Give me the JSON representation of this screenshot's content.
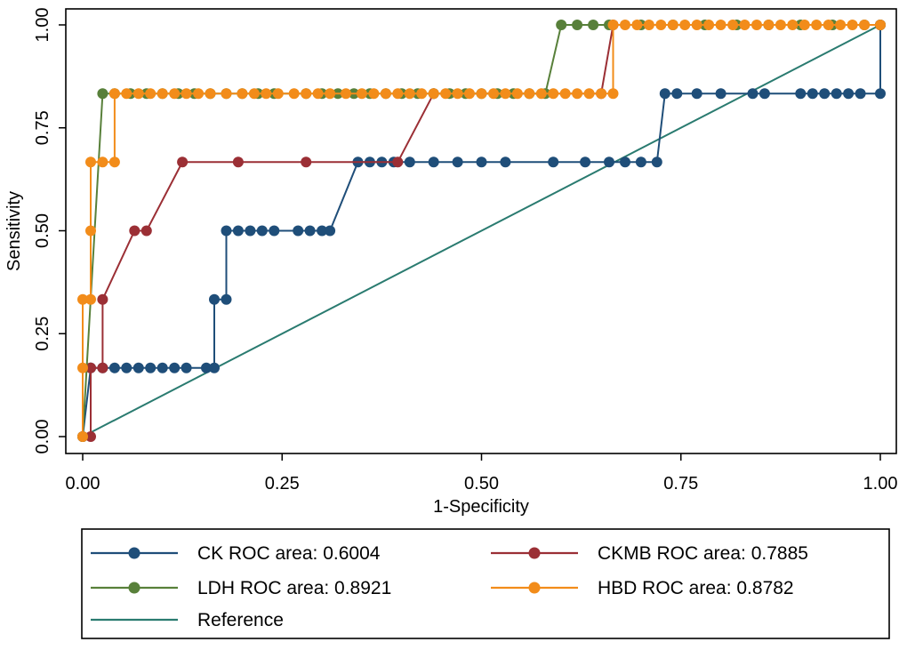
{
  "chart_data": {
    "type": "line",
    "title": "",
    "xlabel": "1-Specificity",
    "ylabel": "Sensitivity",
    "xlim": [
      0,
      1
    ],
    "ylim": [
      0,
      1
    ],
    "x_ticks": [
      "0.00",
      "0.25",
      "0.50",
      "0.75",
      "1.00"
    ],
    "y_ticks": [
      "0.00",
      "0.25",
      "0.50",
      "0.75",
      "1.00"
    ],
    "grid": false,
    "legend_position": "bottom",
    "series": [
      {
        "name": "CK",
        "label": "CK ROC area: 0.6004",
        "color": "#1f4e79",
        "marker": true,
        "points": [
          [
            0.0,
            0.0
          ],
          [
            0.01,
            0.1667
          ],
          [
            0.025,
            0.1667
          ],
          [
            0.04,
            0.1667
          ],
          [
            0.055,
            0.1667
          ],
          [
            0.07,
            0.1667
          ],
          [
            0.085,
            0.1667
          ],
          [
            0.1,
            0.1667
          ],
          [
            0.115,
            0.1667
          ],
          [
            0.13,
            0.1667
          ],
          [
            0.155,
            0.1667
          ],
          [
            0.165,
            0.1667
          ],
          [
            0.165,
            0.3333
          ],
          [
            0.18,
            0.3333
          ],
          [
            0.18,
            0.5
          ],
          [
            0.195,
            0.5
          ],
          [
            0.21,
            0.5
          ],
          [
            0.225,
            0.5
          ],
          [
            0.24,
            0.5
          ],
          [
            0.27,
            0.5
          ],
          [
            0.285,
            0.5
          ],
          [
            0.3,
            0.5
          ],
          [
            0.31,
            0.5
          ],
          [
            0.345,
            0.6667
          ],
          [
            0.36,
            0.6667
          ],
          [
            0.375,
            0.6667
          ],
          [
            0.39,
            0.6667
          ],
          [
            0.41,
            0.6667
          ],
          [
            0.44,
            0.6667
          ],
          [
            0.47,
            0.6667
          ],
          [
            0.5,
            0.6667
          ],
          [
            0.53,
            0.6667
          ],
          [
            0.59,
            0.6667
          ],
          [
            0.63,
            0.6667
          ],
          [
            0.66,
            0.6667
          ],
          [
            0.68,
            0.6667
          ],
          [
            0.7,
            0.6667
          ],
          [
            0.72,
            0.6667
          ],
          [
            0.73,
            0.8333
          ],
          [
            0.745,
            0.8333
          ],
          [
            0.77,
            0.8333
          ],
          [
            0.8,
            0.8333
          ],
          [
            0.84,
            0.8333
          ],
          [
            0.855,
            0.8333
          ],
          [
            0.9,
            0.8333
          ],
          [
            0.915,
            0.8333
          ],
          [
            0.93,
            0.8333
          ],
          [
            0.945,
            0.8333
          ],
          [
            0.96,
            0.8333
          ],
          [
            0.975,
            0.8333
          ],
          [
            1.0,
            0.8333
          ],
          [
            1.0,
            1.0
          ]
        ]
      },
      {
        "name": "CKMB",
        "label": "CKMB ROC area: 0.7885",
        "color": "#9b2f35",
        "marker": true,
        "points": [
          [
            0.0,
            0.0
          ],
          [
            0.01,
            0.0
          ],
          [
            0.01,
            0.1667
          ],
          [
            0.025,
            0.1667
          ],
          [
            0.025,
            0.3333
          ],
          [
            0.065,
            0.5
          ],
          [
            0.08,
            0.5
          ],
          [
            0.125,
            0.6667
          ],
          [
            0.195,
            0.6667
          ],
          [
            0.28,
            0.6667
          ],
          [
            0.395,
            0.6667
          ],
          [
            0.44,
            0.8333
          ],
          [
            0.65,
            0.8333
          ],
          [
            0.665,
            1.0
          ],
          [
            1.0,
            1.0
          ]
        ]
      },
      {
        "name": "LDH",
        "label": "LDH ROC area: 0.8921",
        "color": "#58803a",
        "marker": true,
        "points": [
          [
            0.0,
            0.0
          ],
          [
            0.025,
            0.8333
          ],
          [
            0.04,
            0.8333
          ],
          [
            0.06,
            0.8333
          ],
          [
            0.08,
            0.8333
          ],
          [
            0.1,
            0.8333
          ],
          [
            0.12,
            0.8333
          ],
          [
            0.14,
            0.8333
          ],
          [
            0.16,
            0.8333
          ],
          [
            0.18,
            0.8333
          ],
          [
            0.2,
            0.8333
          ],
          [
            0.22,
            0.8333
          ],
          [
            0.24,
            0.8333
          ],
          [
            0.28,
            0.8333
          ],
          [
            0.3,
            0.8333
          ],
          [
            0.32,
            0.8333
          ],
          [
            0.34,
            0.8333
          ],
          [
            0.36,
            0.8333
          ],
          [
            0.38,
            0.8333
          ],
          [
            0.4,
            0.8333
          ],
          [
            0.42,
            0.8333
          ],
          [
            0.44,
            0.8333
          ],
          [
            0.46,
            0.8333
          ],
          [
            0.48,
            0.8333
          ],
          [
            0.5,
            0.8333
          ],
          [
            0.52,
            0.8333
          ],
          [
            0.54,
            0.8333
          ],
          [
            0.56,
            0.8333
          ],
          [
            0.58,
            0.8333
          ],
          [
            0.6,
            1.0
          ],
          [
            0.62,
            1.0
          ],
          [
            0.64,
            1.0
          ],
          [
            0.66,
            1.0
          ],
          [
            0.7,
            1.0
          ],
          [
            0.74,
            1.0
          ],
          [
            0.78,
            1.0
          ],
          [
            0.82,
            1.0
          ],
          [
            0.86,
            1.0
          ],
          [
            0.9,
            1.0
          ],
          [
            0.94,
            1.0
          ],
          [
            0.98,
            1.0
          ],
          [
            1.0,
            1.0
          ]
        ]
      },
      {
        "name": "HBD",
        "label": "HBD ROC area: 0.8782",
        "color": "#f28c1a",
        "marker": true,
        "points": [
          [
            0.0,
            0.0
          ],
          [
            0.0,
            0.1667
          ],
          [
            0.0,
            0.3333
          ],
          [
            0.01,
            0.3333
          ],
          [
            0.01,
            0.5
          ],
          [
            0.01,
            0.6667
          ],
          [
            0.025,
            0.6667
          ],
          [
            0.04,
            0.6667
          ],
          [
            0.04,
            0.8333
          ],
          [
            0.055,
            0.8333
          ],
          [
            0.07,
            0.8333
          ],
          [
            0.085,
            0.8333
          ],
          [
            0.1,
            0.8333
          ],
          [
            0.115,
            0.8333
          ],
          [
            0.13,
            0.8333
          ],
          [
            0.145,
            0.8333
          ],
          [
            0.16,
            0.8333
          ],
          [
            0.18,
            0.8333
          ],
          [
            0.2,
            0.8333
          ],
          [
            0.215,
            0.8333
          ],
          [
            0.23,
            0.8333
          ],
          [
            0.245,
            0.8333
          ],
          [
            0.265,
            0.8333
          ],
          [
            0.28,
            0.8333
          ],
          [
            0.295,
            0.8333
          ],
          [
            0.31,
            0.8333
          ],
          [
            0.33,
            0.8333
          ],
          [
            0.35,
            0.8333
          ],
          [
            0.365,
            0.8333
          ],
          [
            0.38,
            0.8333
          ],
          [
            0.395,
            0.8333
          ],
          [
            0.41,
            0.8333
          ],
          [
            0.425,
            0.8333
          ],
          [
            0.44,
            0.8333
          ],
          [
            0.455,
            0.8333
          ],
          [
            0.47,
            0.8333
          ],
          [
            0.485,
            0.8333
          ],
          [
            0.5,
            0.8333
          ],
          [
            0.515,
            0.8333
          ],
          [
            0.53,
            0.8333
          ],
          [
            0.545,
            0.8333
          ],
          [
            0.56,
            0.8333
          ],
          [
            0.575,
            0.8333
          ],
          [
            0.59,
            0.8333
          ],
          [
            0.605,
            0.8333
          ],
          [
            0.62,
            0.8333
          ],
          [
            0.635,
            0.8333
          ],
          [
            0.65,
            0.8333
          ],
          [
            0.665,
            0.8333
          ],
          [
            0.665,
            1.0
          ],
          [
            0.68,
            1.0
          ],
          [
            0.695,
            1.0
          ],
          [
            0.71,
            1.0
          ],
          [
            0.725,
            1.0
          ],
          [
            0.74,
            1.0
          ],
          [
            0.755,
            1.0
          ],
          [
            0.77,
            1.0
          ],
          [
            0.785,
            1.0
          ],
          [
            0.8,
            1.0
          ],
          [
            0.815,
            1.0
          ],
          [
            0.83,
            1.0
          ],
          [
            0.845,
            1.0
          ],
          [
            0.86,
            1.0
          ],
          [
            0.875,
            1.0
          ],
          [
            0.89,
            1.0
          ],
          [
            0.905,
            1.0
          ],
          [
            0.92,
            1.0
          ],
          [
            0.935,
            1.0
          ],
          [
            0.95,
            1.0
          ],
          [
            0.965,
            1.0
          ],
          [
            0.98,
            1.0
          ],
          [
            1.0,
            1.0
          ]
        ]
      },
      {
        "name": "Reference",
        "label": "Reference",
        "color": "#2a7b70",
        "marker": false,
        "points": [
          [
            0.0,
            0.0
          ],
          [
            1.0,
            1.0
          ]
        ]
      }
    ]
  }
}
